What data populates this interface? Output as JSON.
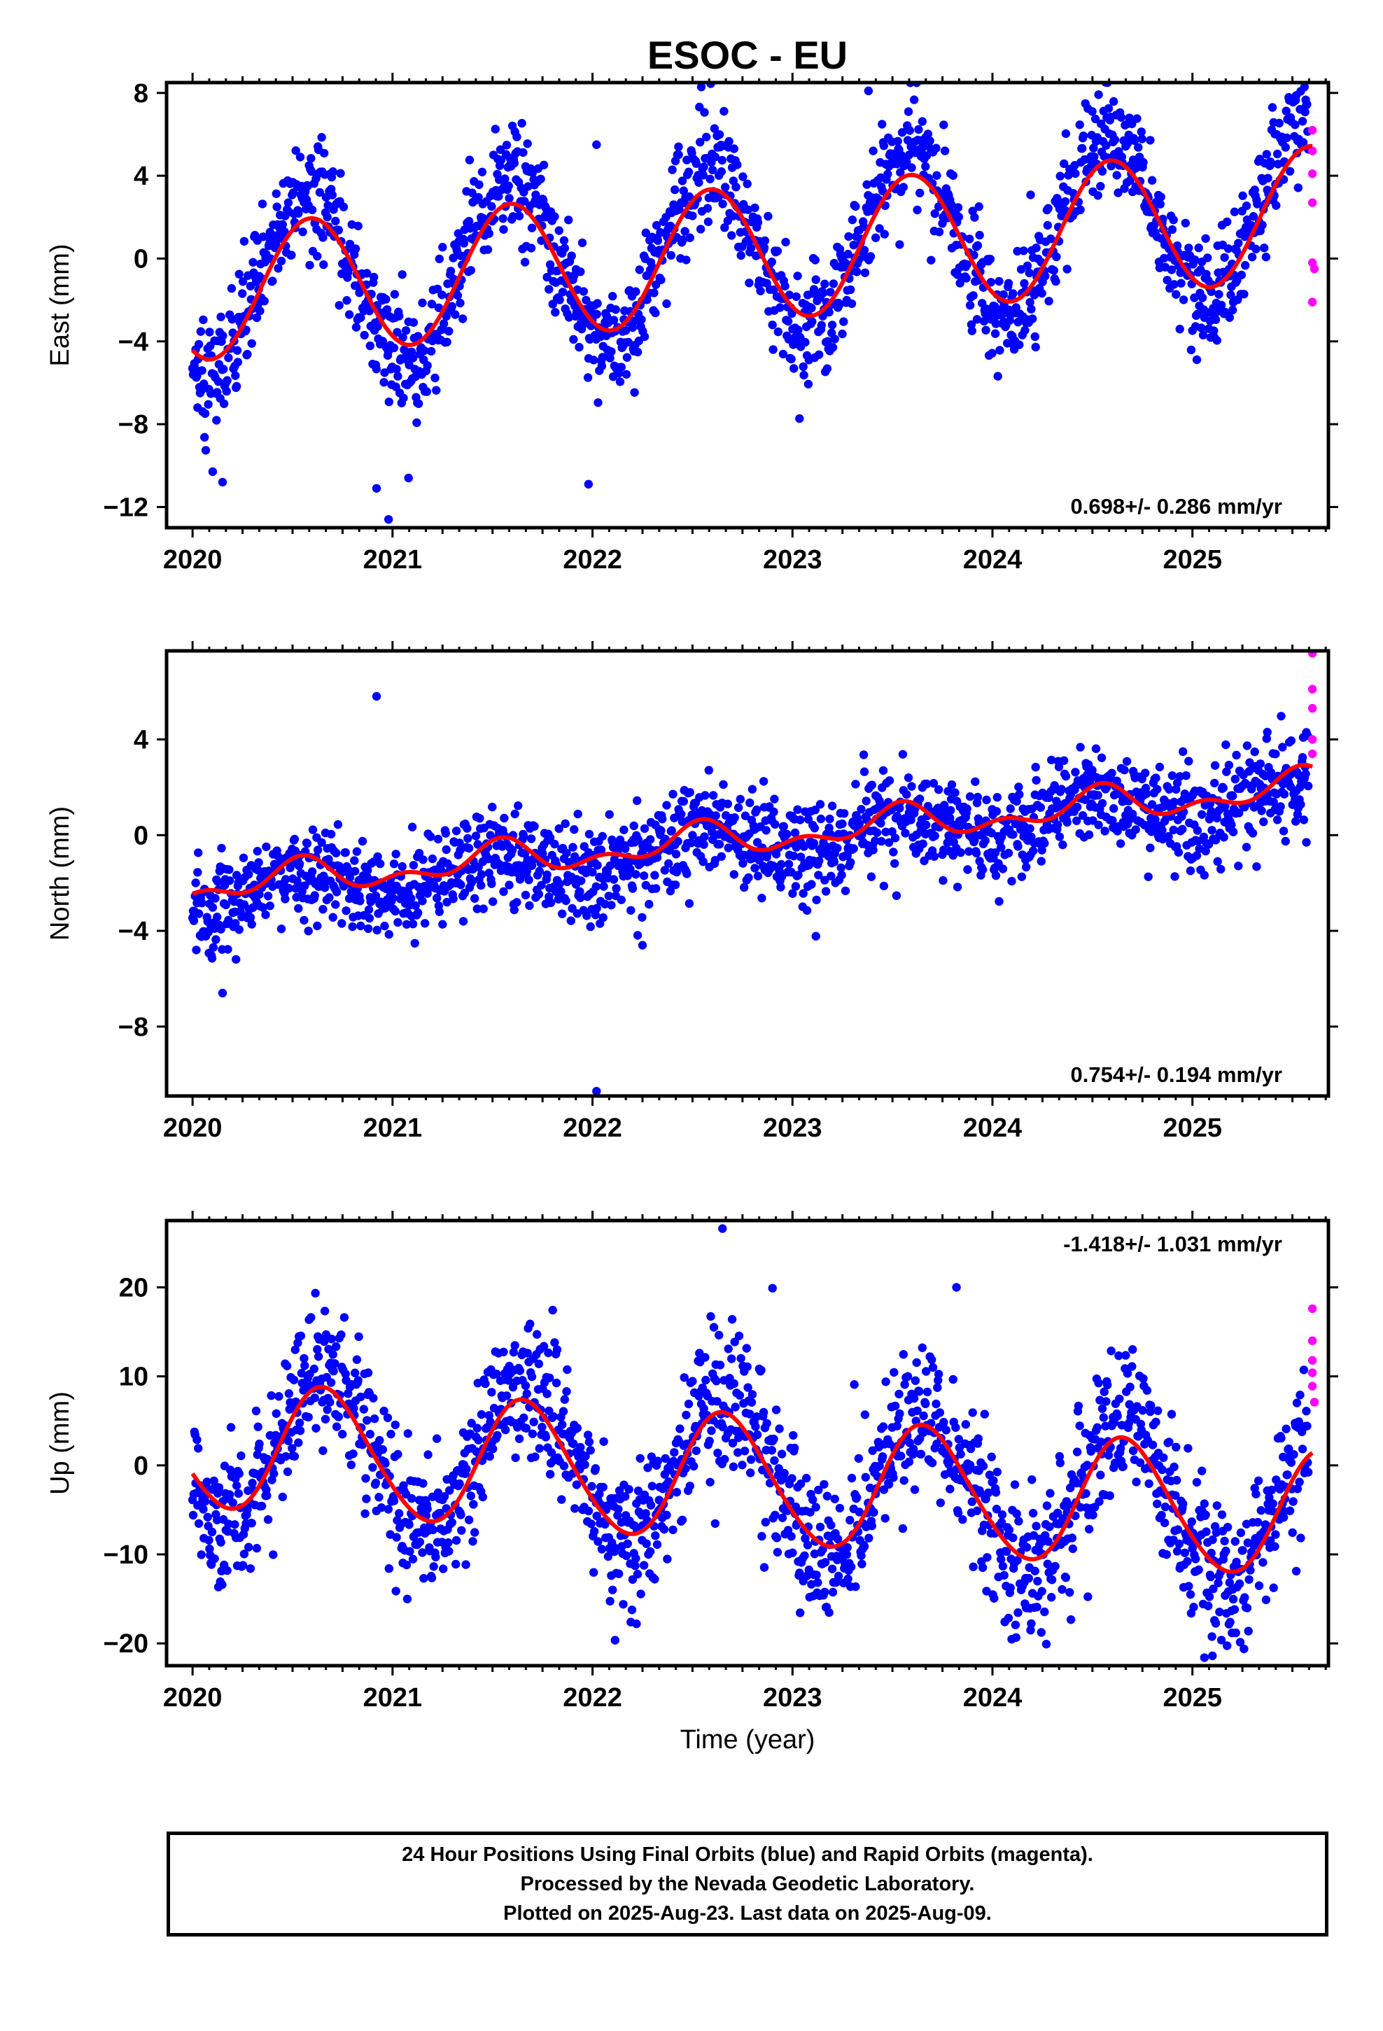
{
  "title": "ESOC - EU",
  "caption": {
    "line1": "24 Hour Positions Using Final Orbits (blue) and Rapid Orbits (magenta).",
    "line2": "Processed by the Nevada Geodetic Laboratory.",
    "line3": "Plotted on 2025-Aug-23. Last data on 2025-Aug-09."
  },
  "colors": {
    "final_orbits": "#0000ff",
    "rapid_orbits": "#ff00ff",
    "model_fit": "#ff0000",
    "frame": "#000000"
  },
  "chart_data": [
    {
      "type": "scatter",
      "ylabel": "East (mm)",
      "xlabel": "",
      "xlim": [
        2019.87,
        2025.68
      ],
      "ylim": [
        -13,
        8.5
      ],
      "xticks": [
        2020,
        2021,
        2022,
        2023,
        2024,
        2025
      ],
      "yticks": [
        8,
        4,
        0,
        -4,
        -8,
        -12
      ],
      "velocity_label": "0.698+/- 0.286 mm/yr",
      "velocity_label_position": "bottom-right",
      "model": {
        "offset": -1.7,
        "trend_mm_per_yr": 0.698,
        "sin_amp": -1.73,
        "cos_amp": -2.73,
        "sin2_amp": 0,
        "cos2_amp": 0,
        "t0": 2020,
        "t_end": 2025.6
      },
      "series": [
        {
          "name": "Final orbits",
          "color": "#0000ff",
          "seasonal_mean": {
            "offset": -1.6,
            "trend": 0.75,
            "sin_amp": -2.0,
            "cos_amp": -3.7
          },
          "noise_mm": 1.4,
          "outliers": [
            [
              2020.15,
              -10.8
            ],
            [
              2020.92,
              -11.1
            ],
            [
              2020.98,
              -12.6
            ],
            [
              2021.08,
              -10.6
            ],
            [
              2021.98,
              -10.9
            ],
            [
              2022.02,
              5.5
            ],
            [
              2022.43,
              5.4
            ],
            [
              2023.38,
              8.1
            ],
            [
              2025.4,
              7.3
            ]
          ]
        },
        {
          "name": "Rapid orbits",
          "color": "#ff00ff",
          "points": [
            [
              2025.6,
              6.2
            ],
            [
              2025.6,
              5.2
            ],
            [
              2025.6,
              4.1
            ],
            [
              2025.6,
              2.7
            ],
            [
              2025.6,
              -0.2
            ],
            [
              2025.61,
              -0.5
            ],
            [
              2025.6,
              -2.1
            ]
          ]
        }
      ]
    },
    {
      "type": "scatter",
      "ylabel": "North (mm)",
      "xlabel": "",
      "xlim": [
        2019.87,
        2025.68
      ],
      "ylim": [
        -10.9,
        7.7
      ],
      "xticks": [
        2020,
        2021,
        2022,
        2023,
        2024,
        2025
      ],
      "yticks": [
        4,
        0,
        -4,
        -8
      ],
      "velocity_label": "0.754+/- 0.194 mm/yr",
      "velocity_label_position": "bottom-right",
      "model": {
        "offset": -2.2,
        "trend_mm_per_yr": 0.754,
        "sin_amp": -0.1,
        "cos_amp": -0.55,
        "sin2_amp": 0.25,
        "cos2_amp": 0.3,
        "t0": 2020,
        "t_end": 2025.6
      },
      "series": [
        {
          "name": "Final orbits",
          "color": "#0000ff",
          "seasonal_mean": {
            "offset": -2.6,
            "trend": 0.8,
            "sin_amp": -0.1,
            "cos_amp": -0.7
          },
          "noise_mm": 1.0,
          "outliers": [
            [
              2020.15,
              -6.6
            ],
            [
              2020.92,
              5.8
            ],
            [
              2022.02,
              -10.7
            ],
            [
              2022.25,
              -4.6
            ],
            [
              2025.57,
              -0.3
            ]
          ]
        },
        {
          "name": "Rapid orbits",
          "color": "#ff00ff",
          "points": [
            [
              2025.6,
              7.6
            ],
            [
              2025.6,
              6.1
            ],
            [
              2025.6,
              5.3
            ],
            [
              2025.6,
              4.0
            ],
            [
              2025.6,
              3.4
            ]
          ]
        }
      ]
    },
    {
      "type": "scatter",
      "ylabel": "Up (mm)",
      "xlabel": "Time (year)",
      "xlim": [
        2019.87,
        2025.68
      ],
      "ylim": [
        -22.5,
        27.5
      ],
      "xticks": [
        2020,
        2021,
        2022,
        2023,
        2024,
        2025
      ],
      "yticks": [
        20,
        10,
        0,
        -10,
        -20
      ],
      "velocity_label": "-1.418+/- 1.031 mm/yr",
      "velocity_label_position": "top-right",
      "model": {
        "offset": 2.3,
        "trend_mm_per_yr": -1.418,
        "sin_amp": -6.15,
        "cos_amp": -3.53,
        "sin2_amp": 0.5,
        "cos2_amp": 0.3,
        "t0": 2020,
        "t_end": 2025.6
      },
      "series": [
        {
          "name": "Final orbits",
          "color": "#0000ff",
          "seasonal_mean": {
            "offset": 2.8,
            "trend": -1.4,
            "sin_amp": -7.5,
            "cos_amp": -4.2
          },
          "noise_mm": 4.0,
          "outliers": [
            [
              2022.65,
              26.6
            ],
            [
              2022.9,
              19.9
            ],
            [
              2023.82,
              20.0
            ],
            [
              2025.06,
              -21.6
            ],
            [
              2025.1,
              -21.4
            ],
            [
              2022.22,
              -17.8
            ]
          ]
        },
        {
          "name": "Rapid orbits",
          "color": "#ff00ff",
          "points": [
            [
              2025.6,
              17.6
            ],
            [
              2025.6,
              14.0
            ],
            [
              2025.6,
              11.8
            ],
            [
              2025.6,
              10.4
            ],
            [
              2025.6,
              8.9
            ],
            [
              2025.61,
              7.1
            ]
          ]
        }
      ]
    }
  ]
}
